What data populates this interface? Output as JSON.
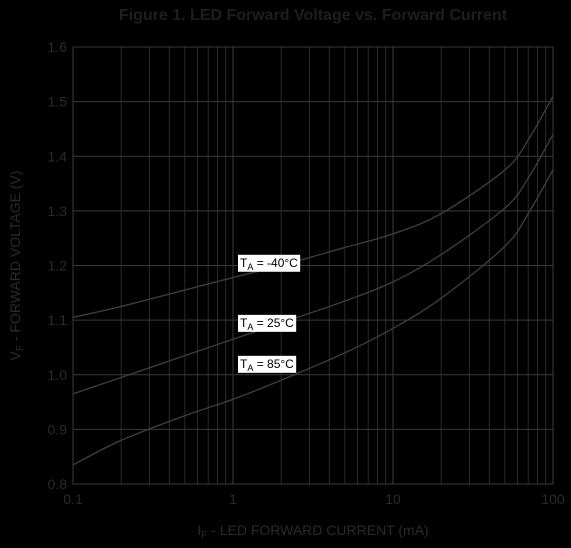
{
  "chart_data": {
    "type": "line",
    "title": "Figure 1. LED Forward Voltage vs. Forward Current",
    "xlabel": {
      "prefix": "I",
      "sub": "F",
      "text": " - LED FORWARD CURRENT (mA)"
    },
    "ylabel": {
      "prefix": "V",
      "sub": "F",
      "text": " - FORWARD VOLTAGE (V)"
    },
    "x_scale": "log",
    "xlim": [
      0.1,
      100
    ],
    "ylim": [
      0.8,
      1.6
    ],
    "x_ticks": [
      {
        "value": 0.1,
        "label": "0.1"
      },
      {
        "value": 1,
        "label": "1"
      },
      {
        "value": 10,
        "label": "10"
      },
      {
        "value": 100,
        "label": "100"
      }
    ],
    "y_ticks": [
      {
        "value": 0.8,
        "label": "0.8"
      },
      {
        "value": 0.9,
        "label": "0.9"
      },
      {
        "value": 1.0,
        "label": "1.0"
      },
      {
        "value": 1.1,
        "label": "1.1"
      },
      {
        "value": 1.2,
        "label": "1.2"
      },
      {
        "value": 1.3,
        "label": "1.3"
      },
      {
        "value": 1.4,
        "label": "1.4"
      },
      {
        "value": 1.5,
        "label": "1.5"
      },
      {
        "value": 1.6,
        "label": "1.6"
      }
    ],
    "grid": true,
    "series": [
      {
        "label_prefix": "T",
        "label_sub": "A",
        "label_text": " = -40°C",
        "label_at": {
          "x": 1.0,
          "y": 1.205
        },
        "x": [
          0.1,
          0.2,
          0.5,
          1,
          2,
          5,
          10,
          20,
          50,
          70,
          100
        ],
        "y": [
          1.105,
          1.125,
          1.155,
          1.178,
          1.2,
          1.233,
          1.258,
          1.295,
          1.375,
          1.43,
          1.51
        ]
      },
      {
        "label_prefix": "T",
        "label_sub": "A",
        "label_text": " = 25°C",
        "label_at": {
          "x": 1.0,
          "y": 1.095
        },
        "x": [
          0.1,
          0.2,
          0.5,
          1,
          2,
          5,
          10,
          20,
          50,
          70,
          100
        ],
        "y": [
          0.965,
          0.995,
          1.035,
          1.065,
          1.095,
          1.135,
          1.17,
          1.22,
          1.305,
          1.36,
          1.44
        ]
      },
      {
        "label_prefix": "T",
        "label_sub": "A",
        "label_text": " = 85°C",
        "label_at": {
          "x": 1.0,
          "y": 1.02
        },
        "x": [
          0.1,
          0.2,
          0.5,
          1,
          2,
          5,
          10,
          20,
          50,
          70,
          100
        ],
        "y": [
          0.835,
          0.88,
          0.925,
          0.955,
          0.99,
          1.04,
          1.085,
          1.14,
          1.235,
          1.295,
          1.375
        ]
      }
    ]
  }
}
